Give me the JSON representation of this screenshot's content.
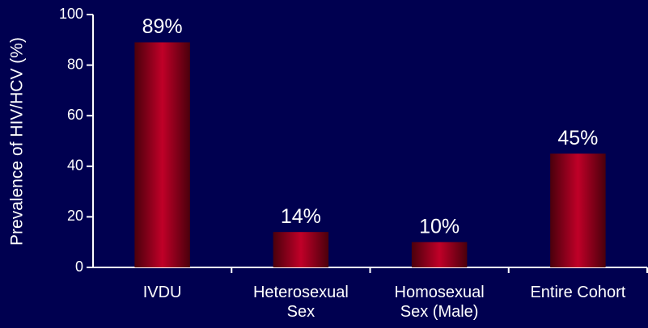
{
  "chart_data": {
    "type": "bar",
    "y_label": "Prevalence of HIV/HCV (%)",
    "categories": [
      [
        "IVDU"
      ],
      [
        "Heterosexual",
        "Sex"
      ],
      [
        "Homosexual",
        "Sex (Male)"
      ],
      [
        "Entire Cohort"
      ]
    ],
    "values": [
      89,
      14,
      10,
      45
    ],
    "value_labels": [
      "89%",
      "14%",
      "10%",
      "45%"
    ],
    "color": "#c00028",
    "ylim": [
      0,
      100
    ],
    "yticks": [
      0,
      20,
      40,
      60,
      80,
      100
    ]
  }
}
